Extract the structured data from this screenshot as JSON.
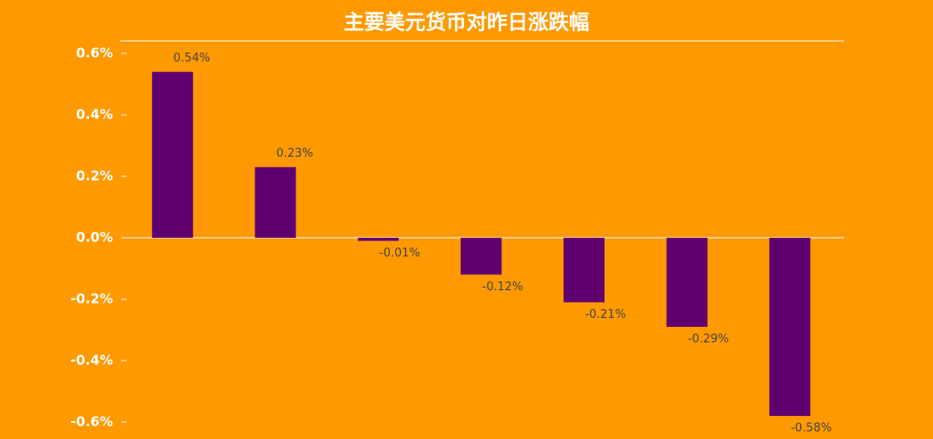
{
  "chart_data": {
    "type": "bar",
    "title": "主要美元货币对昨日涨跌幅",
    "categories": [
      null,
      null,
      null,
      null,
      null,
      null,
      null
    ],
    "values": [
      0.54,
      0.23,
      -0.01,
      -0.12,
      -0.21,
      -0.29,
      -0.58
    ],
    "value_labels": [
      "0.54%",
      "0.23%",
      "-0.01%",
      "-0.12%",
      "-0.21%",
      "-0.29%",
      "-0.58%"
    ],
    "color": "#600070",
    "ylim": [
      -0.6,
      0.6
    ],
    "yticks": [
      {
        "value": -0.6,
        "label": "-0.6%"
      },
      {
        "value": -0.4,
        "label": "-0.4%"
      },
      {
        "value": -0.2,
        "label": "-0.2%"
      },
      {
        "value": 0,
        "label": "0.0%"
      },
      {
        "value": 0.2,
        "label": "0.2%"
      },
      {
        "value": 0.4,
        "label": "0.4%"
      },
      {
        "value": 0.6,
        "label": "0.6%"
      }
    ],
    "grid": false
  }
}
